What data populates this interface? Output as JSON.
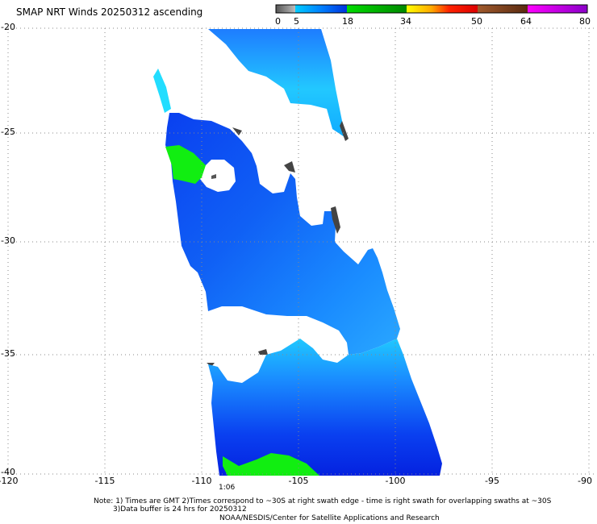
{
  "title": "SMAP NRT Winds 20250312 ascending",
  "colorbar": {
    "tick_labels": [
      "0",
      "5",
      "18",
      "34",
      "50",
      "64",
      "80"
    ],
    "segments": [
      {
        "from": 0,
        "to": 5,
        "colors": [
          "#555555",
          "#bbbbbb"
        ]
      },
      {
        "from": 5,
        "to": 18,
        "colors": [
          "#00ccff",
          "#0033dd"
        ]
      },
      {
        "from": 18,
        "to": 34,
        "colors": [
          "#00dd00",
          "#008800"
        ]
      },
      {
        "from": 34,
        "to": 50,
        "colors": [
          "#ffff00",
          "#ff8800",
          "#ff0000",
          "#dd0000"
        ]
      },
      {
        "from": 50,
        "to": 64,
        "colors": [
          "#a05a2c",
          "#5a2a10"
        ]
      },
      {
        "from": 64,
        "to": 80,
        "colors": [
          "#ff00ff",
          "#8a00c8"
        ]
      }
    ]
  },
  "map": {
    "lon_range": [
      -120,
      -90
    ],
    "lat_range": [
      -20,
      -40
    ],
    "y_tick_labels": [
      "-20",
      "-25",
      "-30",
      "-35",
      "-40"
    ],
    "x_tick_labels": [
      "-120",
      "-115",
      "-110",
      "-105",
      "-100",
      "-95",
      "-90"
    ],
    "grid": "dotted"
  },
  "time_label": "1:06",
  "notes": {
    "line1": "Note: 1) Times are GMT 2)Times correspond to ~30S at right swath edge - time is right swath for overlapping swaths at ~30S",
    "line2": "3)Data buffer is 24 hrs for 20250312",
    "line3": "NOAA/NESDIS/Center for Satellite Applications and Research"
  }
}
